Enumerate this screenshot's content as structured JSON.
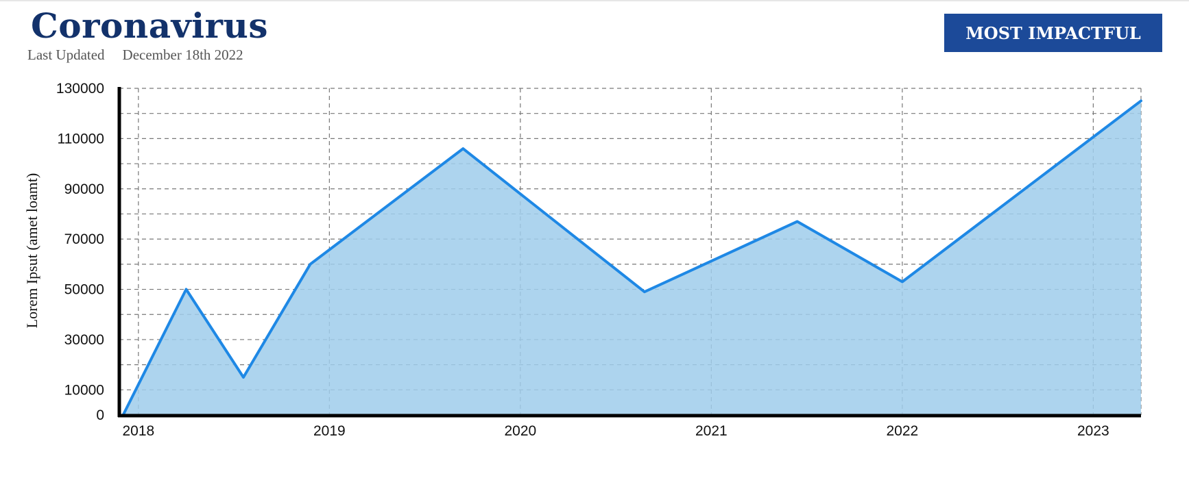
{
  "header": {
    "title": "Coronavirus",
    "updated_label": "Last Updated",
    "updated_date": "December 18th 2022",
    "button_label": "MOST IMPACTFUL"
  },
  "colors": {
    "line": "#1e88e5",
    "fill": "#9fcdeb",
    "title": "#13326b",
    "button": "#1c4a99"
  },
  "chart_data": {
    "type": "area",
    "title": "",
    "xlabel": "",
    "ylabel": "Lorem Ipsut (amet loamt)",
    "xlim": [
      2017.9,
      2023.25
    ],
    "ylim": [
      0,
      130000
    ],
    "yticks": [
      0,
      10000,
      30000,
      50000,
      70000,
      90000,
      110000,
      130000
    ],
    "xticks": [
      2018,
      2019,
      2020,
      2021,
      2022,
      2023
    ],
    "x": [
      2017.92,
      2018.25,
      2018.55,
      2018.9,
      2019.7,
      2020.65,
      2021.45,
      2022.0,
      2023.25
    ],
    "values": [
      0,
      50000,
      15000,
      60000,
      106000,
      49000,
      77000,
      53000,
      125000
    ],
    "grid": true,
    "legend": "none"
  }
}
